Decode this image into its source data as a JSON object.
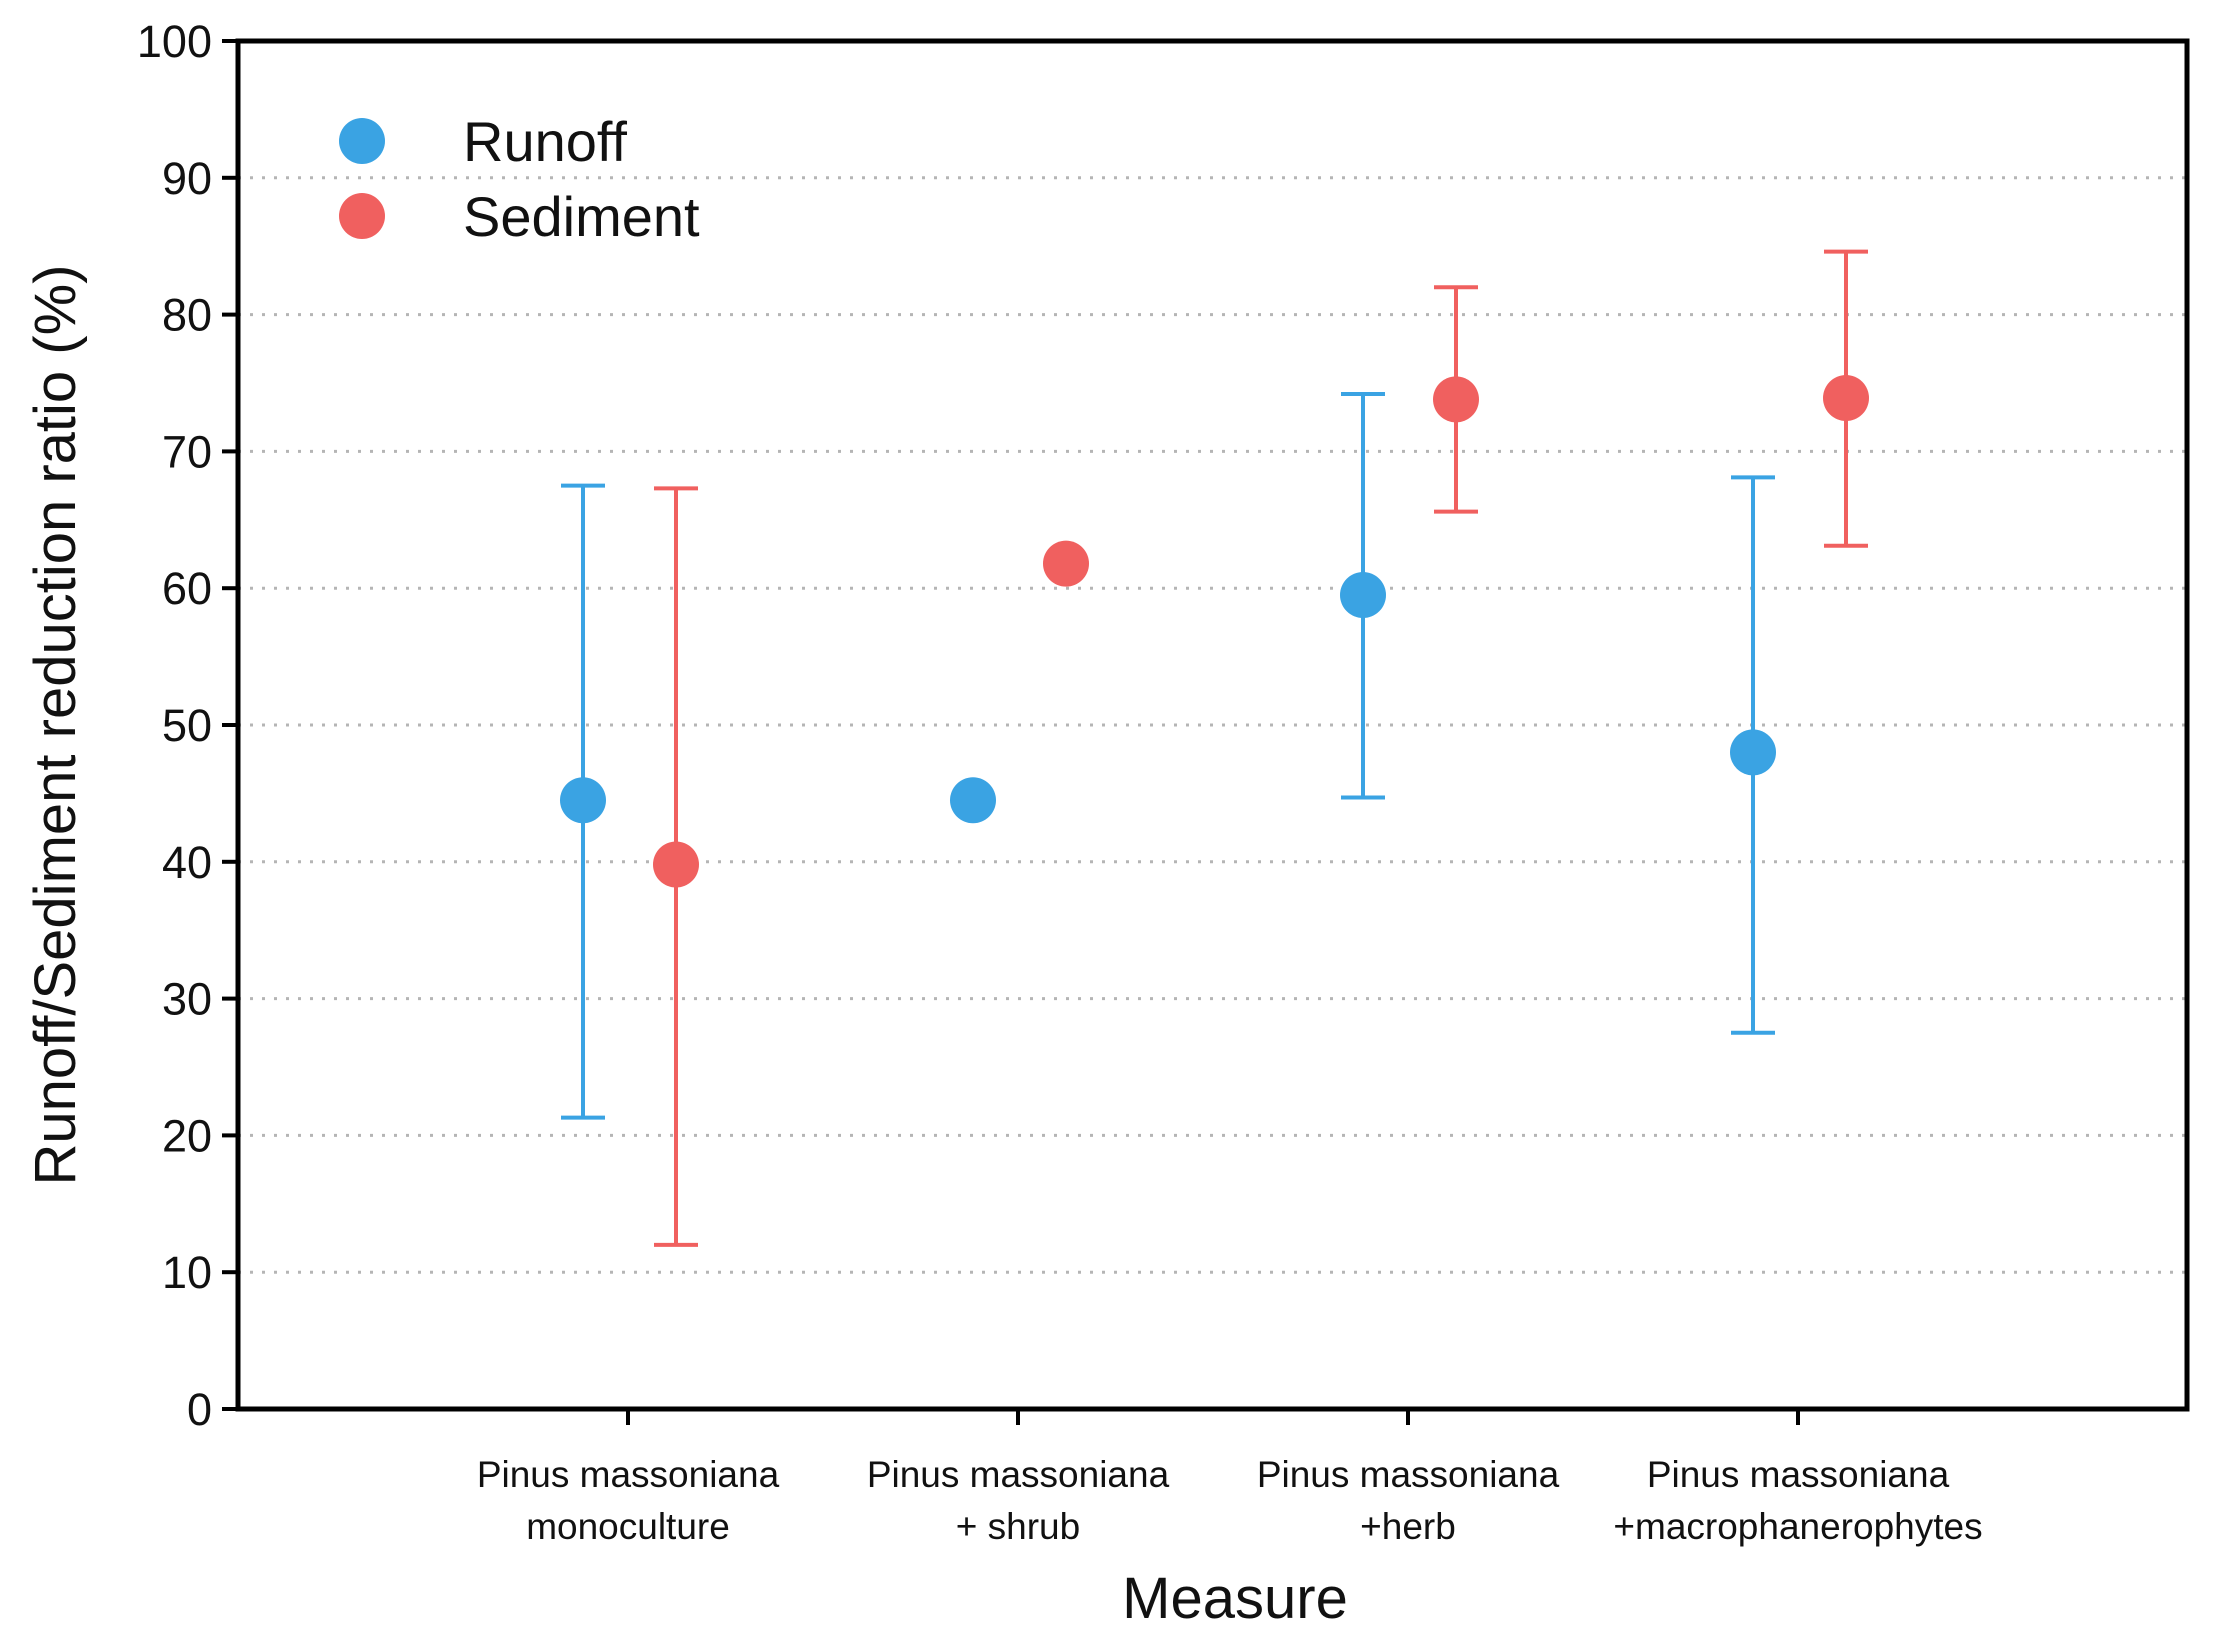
{
  "chart_data": {
    "type": "scatter",
    "title": "",
    "xlabel": "Measure",
    "ylabel": "Runoff/Sediment reduction ratio (%)",
    "ylim": [
      0,
      100
    ],
    "yticks": [
      0,
      10,
      20,
      30,
      40,
      50,
      60,
      70,
      80,
      90,
      100
    ],
    "grid": "horizontal dotted",
    "legend_position": "top-left",
    "categories": [
      [
        "Pinus massoniana",
        "monoculture"
      ],
      [
        "Pinus massoniana",
        "+ shrub"
      ],
      [
        "Pinus massoniana",
        "+herb"
      ],
      [
        "Pinus massoniana",
        "+macrophanerophytes"
      ]
    ],
    "series": [
      {
        "name": "Runoff",
        "color": "#3aa3e3",
        "values": [
          44.5,
          44.5,
          59.5,
          48.0
        ],
        "error_low": [
          21.3,
          null,
          44.7,
          27.5
        ],
        "error_high": [
          67.5,
          null,
          74.2,
          68.1
        ]
      },
      {
        "name": "Sediment",
        "color": "#f0605f",
        "values": [
          39.8,
          61.8,
          73.8,
          73.9
        ],
        "error_low": [
          12.0,
          null,
          65.6,
          63.1
        ],
        "error_high": [
          67.3,
          null,
          82.0,
          84.6
        ]
      }
    ]
  }
}
